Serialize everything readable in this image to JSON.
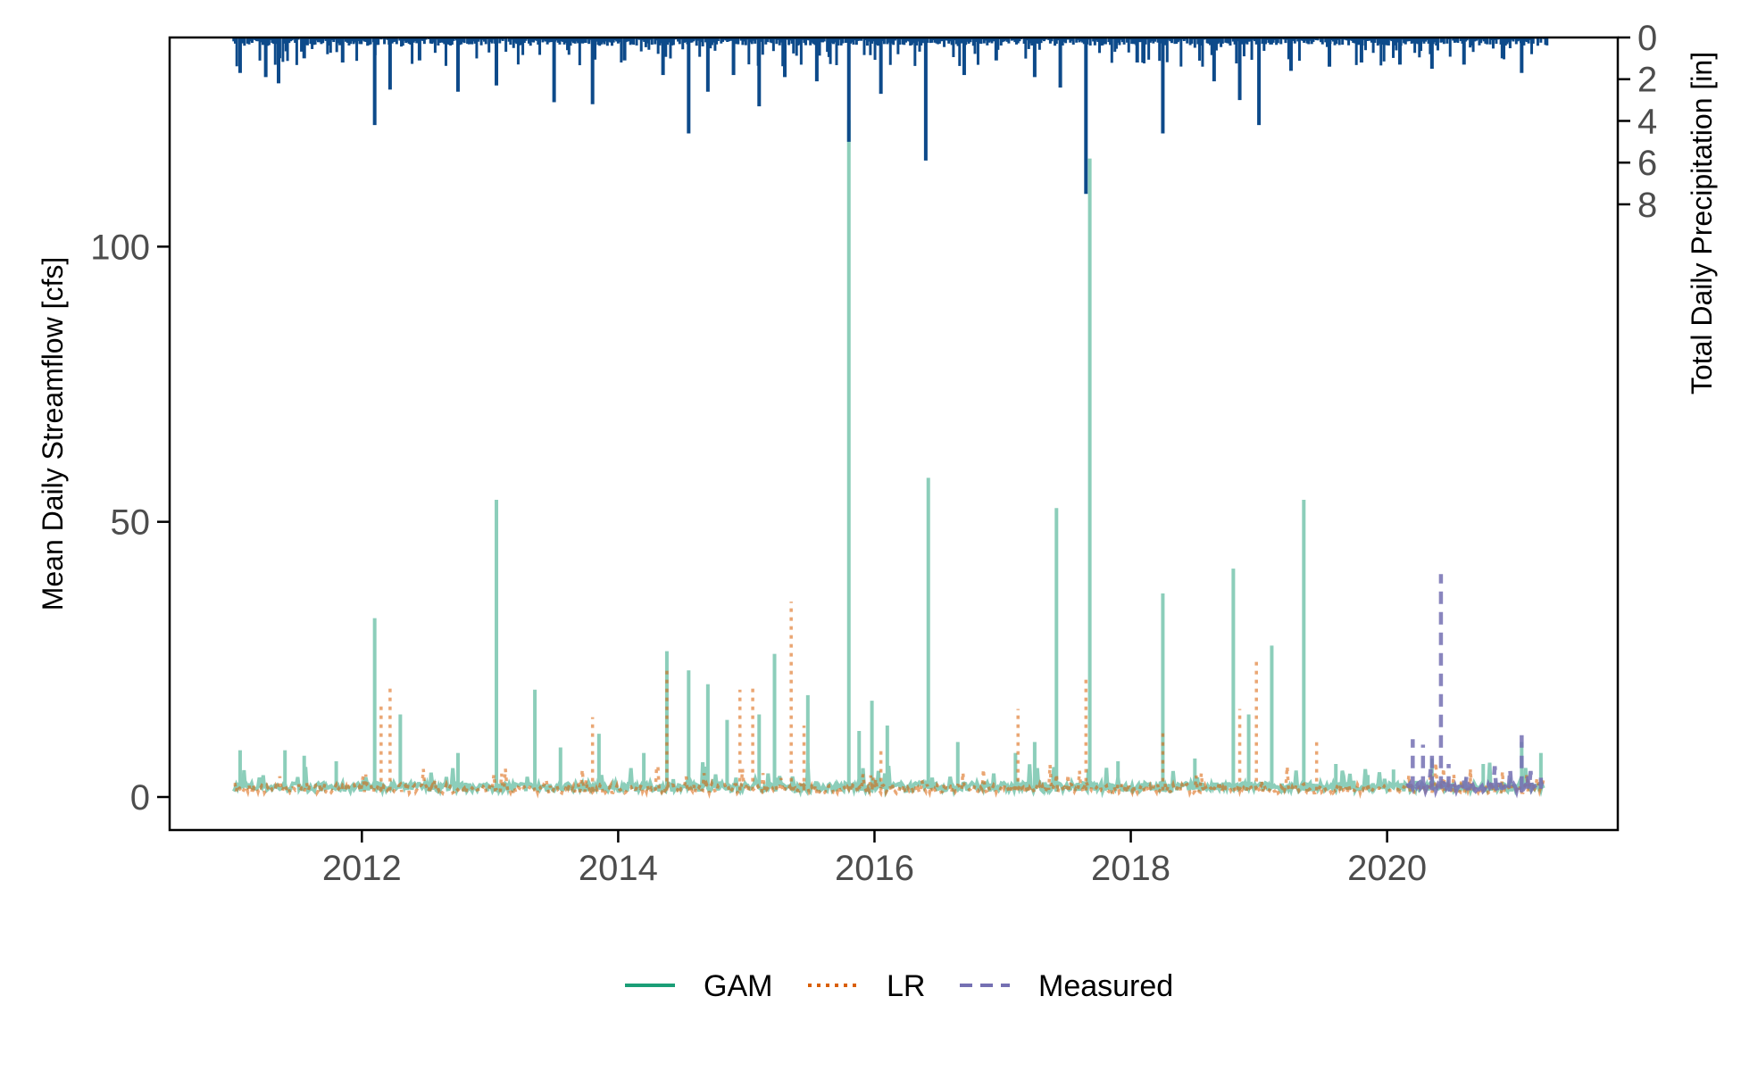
{
  "chart_data": {
    "type": "line",
    "title": "",
    "xlabel": "",
    "ylabel": "Mean Daily Streamflow [cfs]",
    "ylabel_right": "Total Daily Precipitation [in]",
    "xlim": [
      2010.5,
      2021.8
    ],
    "ylim": [
      -6,
      138
    ],
    "y2lim": [
      0,
      38
    ],
    "y2_inverted": true,
    "x_ticks": [
      2012,
      2014,
      2016,
      2018,
      2020
    ],
    "x_tick_labels": [
      "2012",
      "2014",
      "2016",
      "2018",
      "2020"
    ],
    "y_ticks": [
      0,
      50,
      100
    ],
    "y_tick_labels": [
      "0",
      "50",
      "100"
    ],
    "y2_ticks": [
      0,
      2,
      4,
      6,
      8
    ],
    "y2_tick_labels": [
      "0",
      "2",
      "4",
      "6",
      "8"
    ],
    "grid": false,
    "legend_position": "bottom-center",
    "colors": {
      "GAM": "#1b9e77",
      "LR": "#d95f02",
      "Measured": "#7570b3",
      "Precipitation": "#0d4a8a"
    },
    "series": [
      {
        "name": "GAM",
        "style": "solid",
        "baseline": 1.5,
        "x": [
          2011.05,
          2011.4,
          2011.55,
          2011.8,
          2012.1,
          2012.3,
          2012.75,
          2013.05,
          2013.35,
          2013.55,
          2013.85,
          2014.2,
          2014.38,
          2014.55,
          2014.7,
          2014.85,
          2015.1,
          2015.22,
          2015.48,
          2015.8,
          2015.88,
          2015.98,
          2016.1,
          2016.42,
          2016.65,
          2017.1,
          2017.25,
          2017.42,
          2017.68,
          2017.9,
          2018.25,
          2018.5,
          2018.8,
          2018.92,
          2019.1,
          2019.35,
          2019.6,
          2019.85,
          2020.05,
          2020.35,
          2020.75,
          2021.05,
          2021.2
        ],
        "y": [
          8.5,
          8.5,
          7.5,
          6.5,
          32.5,
          15,
          8,
          54,
          19.5,
          9,
          11.5,
          8,
          26.5,
          23,
          20.5,
          14,
          15,
          26,
          18.5,
          123,
          12,
          17.5,
          13,
          58,
          10,
          8,
          10,
          52.5,
          116,
          6.5,
          37,
          7,
          41.5,
          15,
          27.5,
          54,
          6,
          4,
          5,
          7,
          6,
          10,
          8
        ]
      },
      {
        "name": "LR",
        "style": "dotted",
        "baseline": 1.2,
        "x": [
          2012.15,
          2012.22,
          2013.8,
          2014.38,
          2014.95,
          2015.05,
          2015.35,
          2015.45,
          2016.05,
          2017.12,
          2017.65,
          2018.25,
          2018.85,
          2018.98,
          2019.45,
          2020.65
        ],
        "y": [
          16.5,
          20.5,
          14.5,
          23.5,
          19.5,
          20.5,
          35.5,
          13,
          9,
          16,
          22,
          12,
          16,
          25,
          10.5,
          5
        ]
      },
      {
        "name": "Measured",
        "style": "dashed",
        "baseline": 1.5,
        "x": [
          2020.2,
          2020.28,
          2020.35,
          2020.42,
          2020.48,
          2020.6,
          2020.85,
          2021.05,
          2021.1,
          2021.2
        ],
        "y": [
          10.5,
          9.5,
          8.5,
          40.5,
          6,
          3,
          2.5,
          11.5,
          4,
          3.5
        ]
      },
      {
        "name": "Precipitation",
        "axis": "right",
        "style": "bars",
        "x": [
          2011.05,
          2011.25,
          2011.35,
          2011.55,
          2011.85,
          2012.1,
          2012.22,
          2012.45,
          2012.75,
          2013.05,
          2013.5,
          2013.8,
          2014.05,
          2014.35,
          2014.55,
          2014.7,
          2014.9,
          2015.1,
          2015.3,
          2015.55,
          2015.8,
          2016.05,
          2016.4,
          2016.7,
          2016.95,
          2017.25,
          2017.45,
          2017.65,
          2018.05,
          2018.25,
          2018.65,
          2018.85,
          2019.0,
          2019.25,
          2019.55,
          2019.8,
          2020.1,
          2020.35,
          2020.6,
          2020.9,
          2021.05
        ],
        "y": [
          1.7,
          1.9,
          2.2,
          1.0,
          1.2,
          4.2,
          2.5,
          1.1,
          2.6,
          2.3,
          3.1,
          3.2,
          1.1,
          1.8,
          4.6,
          2.6,
          1.8,
          3.3,
          1.9,
          2.1,
          5.0,
          2.7,
          5.9,
          1.8,
          1.1,
          1.9,
          2.4,
          7.5,
          1.2,
          4.6,
          2.1,
          3.0,
          4.2,
          1.6,
          1.4,
          1.2,
          1.3,
          1.5,
          1.3,
          1.0,
          1.7
        ]
      }
    ]
  }
}
